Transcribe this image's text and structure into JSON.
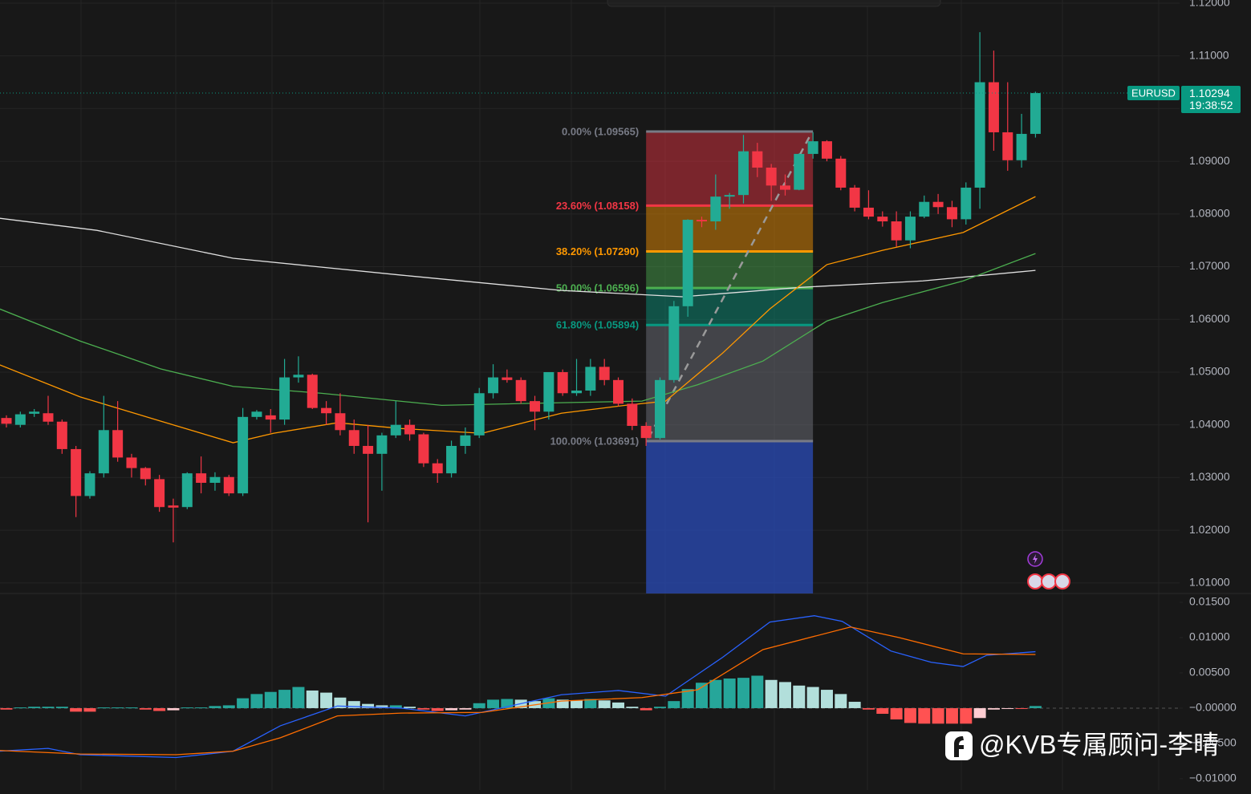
{
  "chart_data": [
    {
      "type": "candlestick",
      "symbol": "EURUSD",
      "last_price": {
        "value": 1.10294,
        "label": "1.10294"
      },
      "countdown": "19:38:52",
      "last_price_color": "#089981",
      "up_color": "#22ab94",
      "down_color": "#f23645",
      "grid": true,
      "ylim": [
        1.008,
        1.1206
      ],
      "yticks": [
        {
          "value": 1.12,
          "label": "1.12000"
        },
        {
          "value": 1.11,
          "label": "1.11000"
        },
        {
          "value": 1.1,
          "label": "1.10000"
        },
        {
          "value": 1.09,
          "label": "1.09000"
        },
        {
          "value": 1.08,
          "label": "1.08000"
        },
        {
          "value": 1.07,
          "label": "1.07000"
        },
        {
          "value": 1.06,
          "label": "1.06000"
        },
        {
          "value": 1.05,
          "label": "1.05000"
        },
        {
          "value": 1.04,
          "label": "1.04000"
        },
        {
          "value": 1.03,
          "label": "1.03000"
        },
        {
          "value": 1.02,
          "label": "1.02000"
        },
        {
          "value": 1.01,
          "label": "1.01000"
        }
      ],
      "open": [
        1.0413,
        1.04,
        1.0421,
        1.0422,
        1.0406,
        1.0354,
        1.0265,
        1.0308,
        1.039,
        1.0338,
        1.0318,
        1.0297,
        1.0247,
        1.0244,
        1.0308,
        1.029,
        1.0301,
        1.027,
        1.0415,
        1.0418,
        1.041,
        1.049,
        1.0495,
        1.0432,
        1.0422,
        1.039,
        1.036,
        1.0345,
        1.038,
        1.04,
        1.0382,
        1.0327,
        1.0308,
        1.036,
        1.038,
        1.046,
        1.049,
        1.0485,
        1.0445,
        1.0425,
        1.05,
        1.046,
        1.0465,
        1.051,
        1.0485,
        1.044,
        1.0398,
        1.0375,
        1.0485,
        1.0625,
        1.0789,
        1.0786,
        1.0833,
        1.0836,
        1.0919,
        1.0888,
        1.0854,
        1.0846,
        1.0914,
        1.0938,
        1.0905,
        1.085,
        1.0812,
        1.0795,
        1.0786,
        1.075,
        1.0795,
        1.0823,
        1.0813,
        1.079,
        1.085,
        1.105,
        1.0955,
        1.0902,
        1.0952
      ],
      "high": [
        1.0418,
        1.0425,
        1.043,
        1.0455,
        1.041,
        1.036,
        1.0312,
        1.0455,
        1.0445,
        1.0345,
        1.032,
        1.0305,
        1.026,
        1.031,
        1.034,
        1.031,
        1.0305,
        1.0432,
        1.0428,
        1.043,
        1.0525,
        1.053,
        1.0497,
        1.0445,
        1.046,
        1.041,
        1.04,
        1.0385,
        1.0445,
        1.041,
        1.0385,
        1.0335,
        1.037,
        1.0395,
        1.047,
        1.0515,
        1.0505,
        1.049,
        1.0455,
        1.05,
        1.0505,
        1.0525,
        1.0525,
        1.0525,
        1.049,
        1.045,
        1.0405,
        1.049,
        1.0635,
        1.079,
        1.0795,
        1.0875,
        1.084,
        1.095,
        1.0935,
        1.0895,
        1.0875,
        1.0915,
        1.0955,
        1.094,
        1.091,
        1.0855,
        1.0845,
        1.0805,
        1.0805,
        1.0805,
        1.0835,
        1.0838,
        1.0825,
        1.086,
        1.1145,
        1.111,
        1.105,
        1.099,
        1.1032
      ],
      "low": [
        1.0395,
        1.0395,
        1.0415,
        1.04,
        1.0345,
        1.0225,
        1.026,
        1.03,
        1.033,
        1.03,
        1.0285,
        1.0235,
        1.0177,
        1.024,
        1.027,
        1.0275,
        1.0265,
        1.0265,
        1.041,
        1.0385,
        1.04,
        1.048,
        1.043,
        1.04,
        1.038,
        1.0345,
        1.0215,
        1.0275,
        1.0375,
        1.037,
        1.032,
        1.029,
        1.03,
        1.0345,
        1.0375,
        1.045,
        1.048,
        1.044,
        1.039,
        1.041,
        1.0455,
        1.0455,
        1.0455,
        1.0475,
        1.0435,
        1.039,
        1.036,
        1.0372,
        1.048,
        1.0605,
        1.0775,
        1.077,
        1.081,
        1.082,
        1.087,
        1.0825,
        1.0835,
        1.0845,
        1.0905,
        1.09,
        1.0845,
        1.0805,
        1.079,
        1.0776,
        1.0738,
        1.0735,
        1.0792,
        1.08,
        1.0775,
        1.078,
        1.081,
        1.092,
        1.0882,
        1.0888,
        1.0945
      ],
      "close": [
        1.0402,
        1.042,
        1.0425,
        1.0406,
        1.0354,
        1.0265,
        1.0308,
        1.039,
        1.0338,
        1.0318,
        1.0297,
        1.0244,
        1.0243,
        1.0308,
        1.029,
        1.0301,
        1.027,
        1.0415,
        1.0425,
        1.041,
        1.049,
        1.0495,
        1.0432,
        1.0422,
        1.039,
        1.036,
        1.0345,
        1.038,
        1.04,
        1.0382,
        1.0327,
        1.0308,
        1.036,
        1.038,
        1.046,
        1.049,
        1.0485,
        1.0445,
        1.0425,
        1.05,
        1.046,
        1.0465,
        1.051,
        1.0485,
        1.044,
        1.0398,
        1.0375,
        1.0485,
        1.0625,
        1.0789,
        1.0786,
        1.0833,
        1.0836,
        1.0919,
        1.0888,
        1.0854,
        1.0846,
        1.0914,
        1.0938,
        1.0905,
        1.085,
        1.0812,
        1.0795,
        1.0786,
        1.075,
        1.0795,
        1.0823,
        1.0813,
        1.079,
        1.085,
        1.105,
        1.0955,
        1.0902,
        1.0952,
        1.10294
      ],
      "moving_averages": [
        {
          "color": "#e0e0e0",
          "x": [
            -0.5,
            6.5,
            16.3,
            28.4,
            39.9,
            48.6,
            57.2,
            65.9,
            74
          ],
          "values": [
            1.0792,
            1.0769,
            1.0716,
            1.0684,
            1.0655,
            1.0643,
            1.0661,
            1.0673,
            1.0693
          ]
        },
        {
          "color": "#4caf50",
          "x": [
            -0.5,
            5.3,
            11.1,
            16.3,
            22.6,
            31.3,
            39.9,
            45.7,
            49.7,
            54.4,
            59,
            63,
            68.8,
            74
          ],
          "values": [
            1.062,
            1.0559,
            1.0506,
            1.0473,
            1.046,
            1.0437,
            1.0442,
            1.0445,
            1.0476,
            1.0521,
            1.0597,
            1.0632,
            1.0673,
            1.0725
          ]
        },
        {
          "color": "#ff9800",
          "x": [
            -0.5,
            5.3,
            11.1,
            16.3,
            19.2,
            23.8,
            28.4,
            34.2,
            39.9,
            44.5,
            47.4,
            51.5,
            54.9,
            59,
            63,
            68.8,
            74
          ],
          "values": [
            1.0514,
            1.0453,
            1.0407,
            1.0366,
            1.0384,
            1.0404,
            1.0393,
            1.0384,
            1.0422,
            1.0437,
            1.0445,
            1.0536,
            1.062,
            1.0704,
            1.0731,
            1.0765,
            1.0833
          ]
        }
      ],
      "fibonacci": {
        "x": [
          46,
          58
        ],
        "levels": [
          {
            "value": 1.09565,
            "label": "0.00% (1.09565)",
            "color": "#787b86"
          },
          {
            "value": 1.08158,
            "label": "23.60% (1.08158)",
            "color": "#f23645"
          },
          {
            "value": 1.0729,
            "label": "38.20% (1.07290)",
            "color": "#ff9800"
          },
          {
            "value": 1.06596,
            "label": "50.00% (1.06596)",
            "color": "#4caf50"
          },
          {
            "value": 1.05894,
            "label": "61.80% (1.05894)",
            "color": "#089981"
          },
          {
            "value": 1.03691,
            "label": "100.00% (1.03691)",
            "color": "#787b86"
          }
        ]
      }
    },
    {
      "type": "macd",
      "ylim": [
        -0.0116,
        0.01625
      ],
      "yticks": [
        {
          "value": 0.015,
          "label": "0.01500"
        },
        {
          "value": 0.01,
          "label": "0.01000"
        },
        {
          "value": 0.005,
          "label": "0.00500"
        },
        {
          "value": 0,
          "label": "−0.00000"
        },
        {
          "value": -0.005,
          "label": "−0.00500"
        },
        {
          "value": -0.01,
          "label": "−0.01000"
        }
      ],
      "histogram_colors": [
        "#26a69a",
        "#b2dfdb",
        "#ff5252",
        "#ffcdd2"
      ],
      "histogram": [
        -0.0002,
        0.0001,
        0.0002,
        0.0002,
        0.0002,
        -0.0005,
        -0.0005,
        0.0001,
        0.0001,
        0.0001,
        -0.0002,
        -0.0004,
        -0.0003,
        0.0001,
        0.0001,
        0.0003,
        0.0004,
        0.0014,
        0.002,
        0.0023,
        0.0026,
        0.003,
        0.0025,
        0.0022,
        0.0015,
        0.001,
        0.0006,
        0.0004,
        0.0004,
        0.0002,
        -0.0002,
        -0.0004,
        -0.0003,
        -0.0002,
        0.0007,
        0.0012,
        0.0013,
        0.0012,
        0.001,
        0.0014,
        0.0012,
        0.0011,
        0.0013,
        0.0011,
        0.0008,
        0.0002,
        -0.0003,
        0.0002,
        0.001,
        0.0027,
        0.0036,
        0.004,
        0.0042,
        0.0043,
        0.0046,
        0.004,
        0.0037,
        0.0032,
        0.003,
        0.0026,
        0.002,
        0.0009,
        -0.0002,
        -0.0008,
        -0.0016,
        -0.0021,
        -0.0022,
        -0.0022,
        -0.0022,
        -0.0022,
        -0.0014,
        -0.0002,
        -0.0001,
        -0.0001,
        0.0003
      ],
      "series": [
        {
          "color": "#2962ff",
          "x": [
            -0.5,
            3,
            5.3,
            12.2,
            16.3,
            19.7,
            23.8,
            28.4,
            33,
            39.9,
            44,
            47.4,
            51.5,
            54.9,
            58.1,
            60.1,
            63.6,
            66.5,
            68.8,
            70.5,
            74
          ],
          "values": [
            -0.0061,
            -0.0057,
            -0.0066,
            -0.007,
            -0.0061,
            -0.0025,
            0.0003,
            0.0,
            -0.0011,
            0.0019,
            0.0025,
            0.0017,
            0.0072,
            0.0122,
            0.0131,
            0.0123,
            0.0081,
            0.0065,
            0.0059,
            0.0075,
            0.008
          ]
        },
        {
          "color": "#ff6d00",
          "x": [
            -0.5,
            5.3,
            12.2,
            16.3,
            19.7,
            23.8,
            28.4,
            34.2,
            39.9,
            45.7,
            49.7,
            54.4,
            60.7,
            64.2,
            68.8,
            74
          ],
          "values": [
            -0.006,
            -0.0065,
            -0.0066,
            -0.0061,
            -0.0042,
            -0.0011,
            -0.0007,
            -0.0006,
            0.001,
            0.0015,
            0.0026,
            0.0083,
            0.0115,
            0.01,
            0.0077,
            0.0076
          ]
        }
      ]
    }
  ],
  "watermark": "@KVB专属顾问-李晴"
}
